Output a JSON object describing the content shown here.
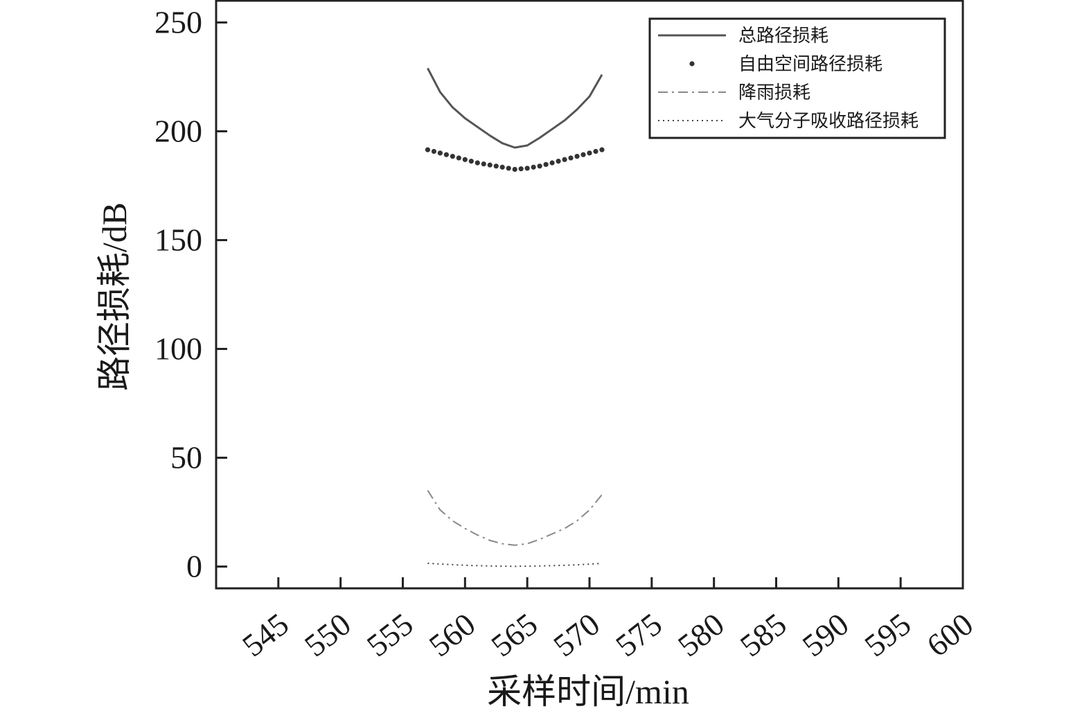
{
  "chart_data": {
    "type": "line",
    "xlabel": "采样时间/min",
    "ylabel": "路径损耗/dB",
    "xlim": [
      540,
      600
    ],
    "ylim": [
      -10,
      260
    ],
    "xticks": [
      545,
      550,
      555,
      560,
      565,
      570,
      575,
      580,
      585,
      590,
      595,
      600
    ],
    "yticks": [
      0,
      50,
      100,
      150,
      200,
      250
    ],
    "legend_position": "top-right",
    "grid": false,
    "series": [
      {
        "name": "总路径损耗",
        "style": "solid",
        "color": "#555555",
        "x": [
          557,
          558,
          559,
          560,
          561,
          562,
          563,
          564,
          565,
          566,
          567,
          568,
          569,
          570,
          571
        ],
        "y": [
          229,
          218,
          211,
          206,
          202,
          198,
          194.5,
          192.5,
          193.5,
          197,
          201,
          205,
          210,
          216,
          226
        ]
      },
      {
        "name": "自由空间路径损耗",
        "style": "dots",
        "color": "#333333",
        "x": [
          557,
          558,
          559,
          560,
          561,
          562,
          563,
          564,
          565,
          566,
          567,
          568,
          569,
          570,
          571
        ],
        "y": [
          191.5,
          190,
          188.5,
          187,
          185.5,
          184.5,
          183.5,
          182.5,
          183,
          184,
          185.5,
          187,
          188.5,
          190,
          191.5
        ]
      },
      {
        "name": "降雨损耗",
        "style": "dash-dot",
        "color": "#888888",
        "x": [
          557,
          558,
          559,
          560,
          561,
          562,
          563,
          564,
          565,
          566,
          567,
          568,
          569,
          570,
          571
        ],
        "y": [
          35,
          26,
          21,
          17.5,
          14.5,
          12,
          10.5,
          9.8,
          10.5,
          12.5,
          15,
          17.5,
          21,
          26,
          33
        ]
      },
      {
        "name": "大气分子吸收路径损耗",
        "style": "dotted",
        "color": "#444444",
        "x": [
          557,
          558,
          559,
          560,
          561,
          562,
          563,
          564,
          565,
          566,
          567,
          568,
          569,
          570,
          571
        ],
        "y": [
          1.5,
          1.2,
          0.9,
          0.6,
          0.4,
          0.3,
          0.2,
          0.1,
          0.2,
          0.3,
          0.4,
          0.6,
          0.8,
          1.1,
          1.5
        ]
      }
    ]
  }
}
